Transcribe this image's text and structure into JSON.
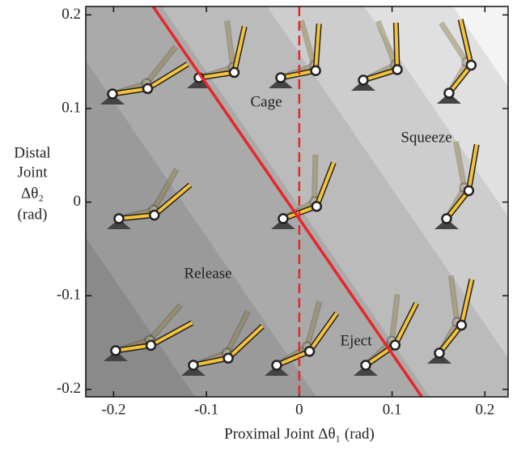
{
  "chart_data": {
    "type": "line",
    "xlabel": "Proximal Joint Δθ₁ (rad)",
    "ylabel": [
      "Distal",
      "Joint",
      "Δθ₂",
      "(rad)"
    ],
    "xlim": [
      -0.23,
      0.225
    ],
    "ylim": [
      -0.208,
      0.209
    ],
    "xticks": [
      -0.2,
      -0.1,
      0,
      0.1,
      0.2
    ],
    "yticks": [
      -0.2,
      -0.1,
      0,
      0.1,
      0.2
    ],
    "series": [
      {
        "color": "#e8262a",
        "x": [
          -0.1575,
          0.132
        ],
        "values": [
          0.209,
          -0.208
        ]
      }
    ],
    "vline": 0,
    "vline_color": "#e8262a",
    "annotations": [
      "Cage",
      "Squeeze",
      "Release",
      "Eject"
    ]
  }
}
